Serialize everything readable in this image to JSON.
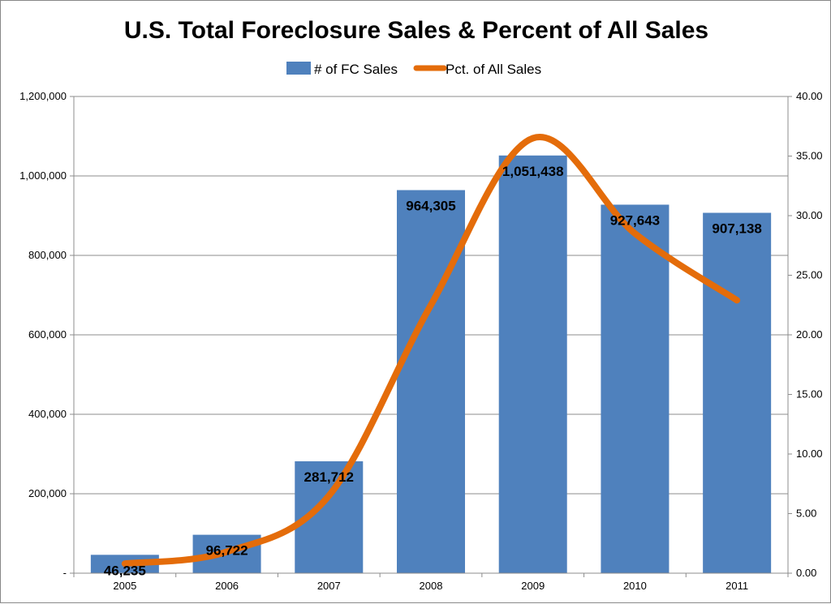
{
  "chart_data": {
    "type": "bar",
    "title": "U.S. Total Foreclosure Sales & Percent of All Sales",
    "categories": [
      "2005",
      "2006",
      "2007",
      "2008",
      "2009",
      "2010",
      "2011"
    ],
    "series": [
      {
        "name": "# of FC Sales",
        "type": "bar",
        "axis": "left",
        "color": "#4F81BD",
        "values": [
          46235,
          96722,
          281712,
          964305,
          1051438,
          927643,
          907138
        ],
        "data_labels": [
          "46,235",
          "96,722",
          "281,712",
          "964,305",
          "1,051,438",
          "927,643",
          "907,138"
        ]
      },
      {
        "name": "Pct. of All Sales",
        "type": "line",
        "smooth": true,
        "axis": "right",
        "color": "#E46C0A",
        "values": [
          0.8,
          1.8,
          6.5,
          22.5,
          36.5,
          28.5,
          22.9
        ]
      }
    ],
    "y_left": {
      "ylim": [
        0,
        1200000
      ],
      "ticks": [
        0,
        200000,
        400000,
        600000,
        800000,
        1000000,
        1200000
      ],
      "tick_labels": [
        "-",
        "200,000",
        "400,000",
        "600,000",
        "800,000",
        "1,000,000",
        "1,200,000"
      ]
    },
    "y_right": {
      "ylim": [
        0,
        40
      ],
      "ticks": [
        0,
        5,
        10,
        15,
        20,
        25,
        30,
        35,
        40
      ],
      "tick_labels": [
        "0.00",
        "5.00",
        "10.00",
        "15.00",
        "20.00",
        "25.00",
        "30.00",
        "35.00",
        "40.00"
      ]
    },
    "grid": "horizontal",
    "legend": "top-center"
  }
}
